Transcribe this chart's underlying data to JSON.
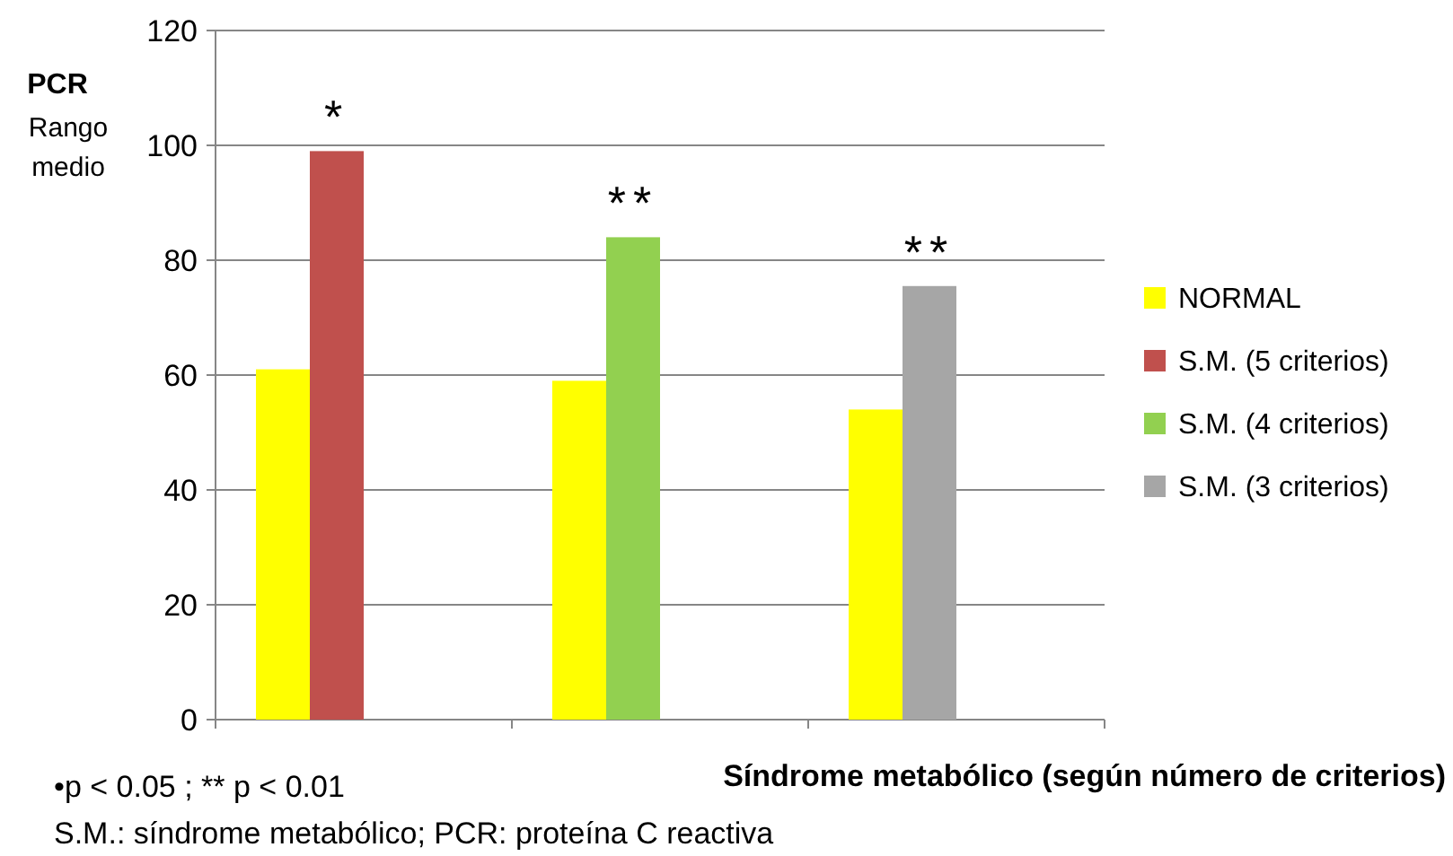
{
  "chart_data": {
    "type": "bar",
    "ylabel": "PCR\nRango\nmedio",
    "xlabel": "Síndrome metabólico (según número de criterios)",
    "categories": [
      null,
      null,
      null
    ],
    "series": [
      {
        "name": "NORMAL",
        "color": "#ffff00",
        "values": [
          61,
          59,
          54
        ]
      },
      {
        "name": "S.M. (5 criterios)",
        "color": "#c0504d",
        "values": [
          99,
          null,
          null
        ]
      },
      {
        "name": "S.M. (4 criterios)",
        "color": "#92d050",
        "values": [
          null,
          84,
          null
        ]
      },
      {
        "name": "S.M. (3 criterios)",
        "color": "#a6a6a6",
        "values": [
          null,
          null,
          75.5
        ]
      }
    ],
    "ylim": [
      0,
      120
    ],
    "yticks": [
      0,
      20,
      40,
      60,
      80,
      100,
      120
    ],
    "grid": "y",
    "legend": "right",
    "annotations": [
      "*",
      "**",
      "**",
      "•p < 0.05 ;   ** p < 0.01",
      "S.M.: síndrome metabólico; PCR: proteína C reactiva"
    ]
  }
}
